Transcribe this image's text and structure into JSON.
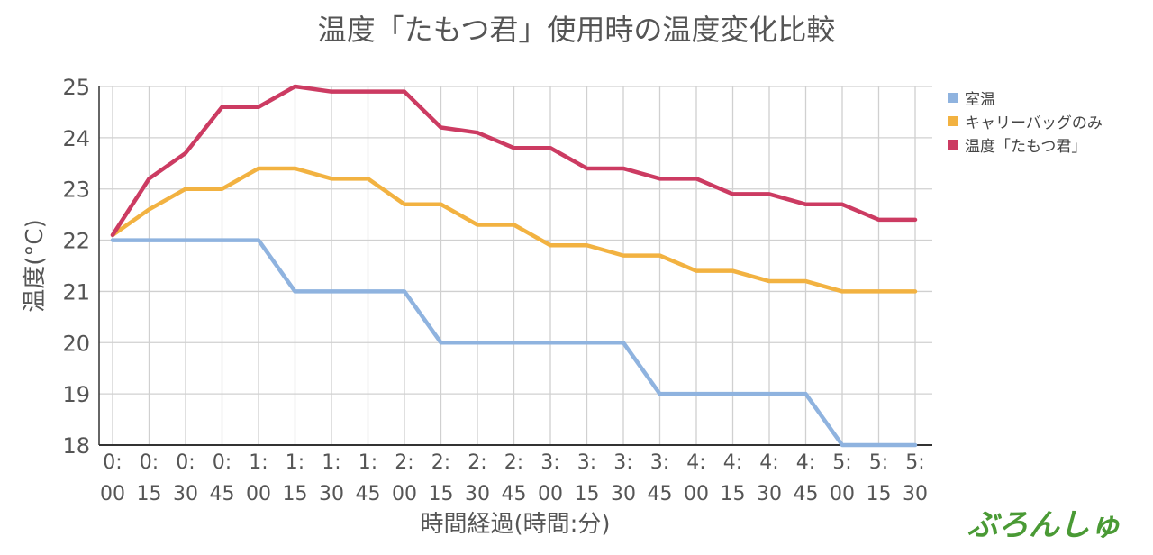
{
  "chart_data": {
    "type": "line",
    "title": "温度「たもつ君」使用時の温度変化比較",
    "xlabel": "時間経過(時間:分)",
    "ylabel": "温度(°C)",
    "ylim": [
      18,
      25
    ],
    "yticks": [
      18,
      19,
      20,
      21,
      22,
      23,
      24,
      25
    ],
    "grid": true,
    "legend_position": "right",
    "categories": [
      "0:00",
      "0:15",
      "0:30",
      "0:45",
      "1:00",
      "1:15",
      "1:30",
      "1:45",
      "2:00",
      "2:15",
      "2:30",
      "2:45",
      "3:00",
      "3:15",
      "3:30",
      "3:45",
      "4:00",
      "4:15",
      "4:30",
      "4:45",
      "5:00",
      "5:15",
      "5:30"
    ],
    "series": [
      {
        "name": "室温",
        "color": "#8fb3df",
        "values": [
          22,
          22,
          22,
          22,
          22,
          21,
          21,
          21,
          21,
          20,
          20,
          20,
          20,
          20,
          20,
          19,
          19,
          19,
          19,
          19,
          18,
          18,
          18
        ]
      },
      {
        "name": "キャリーバッグのみ",
        "color": "#f2b241",
        "values": [
          22.1,
          22.6,
          23.0,
          23.0,
          23.4,
          23.4,
          23.2,
          23.2,
          22.7,
          22.7,
          22.3,
          22.3,
          21.9,
          21.9,
          21.7,
          21.7,
          21.4,
          21.4,
          21.2,
          21.2,
          21.0,
          21.0,
          21.0
        ]
      },
      {
        "name": "温度「たもつ君」",
        "color": "#cc3b62",
        "values": [
          22.1,
          23.2,
          23.7,
          24.6,
          24.6,
          25.0,
          24.9,
          24.9,
          24.9,
          24.2,
          24.1,
          23.8,
          23.8,
          23.4,
          23.4,
          23.2,
          23.2,
          22.9,
          22.9,
          22.7,
          22.7,
          22.4,
          22.4
        ]
      }
    ]
  },
  "watermark": "ぶろんしゅ"
}
